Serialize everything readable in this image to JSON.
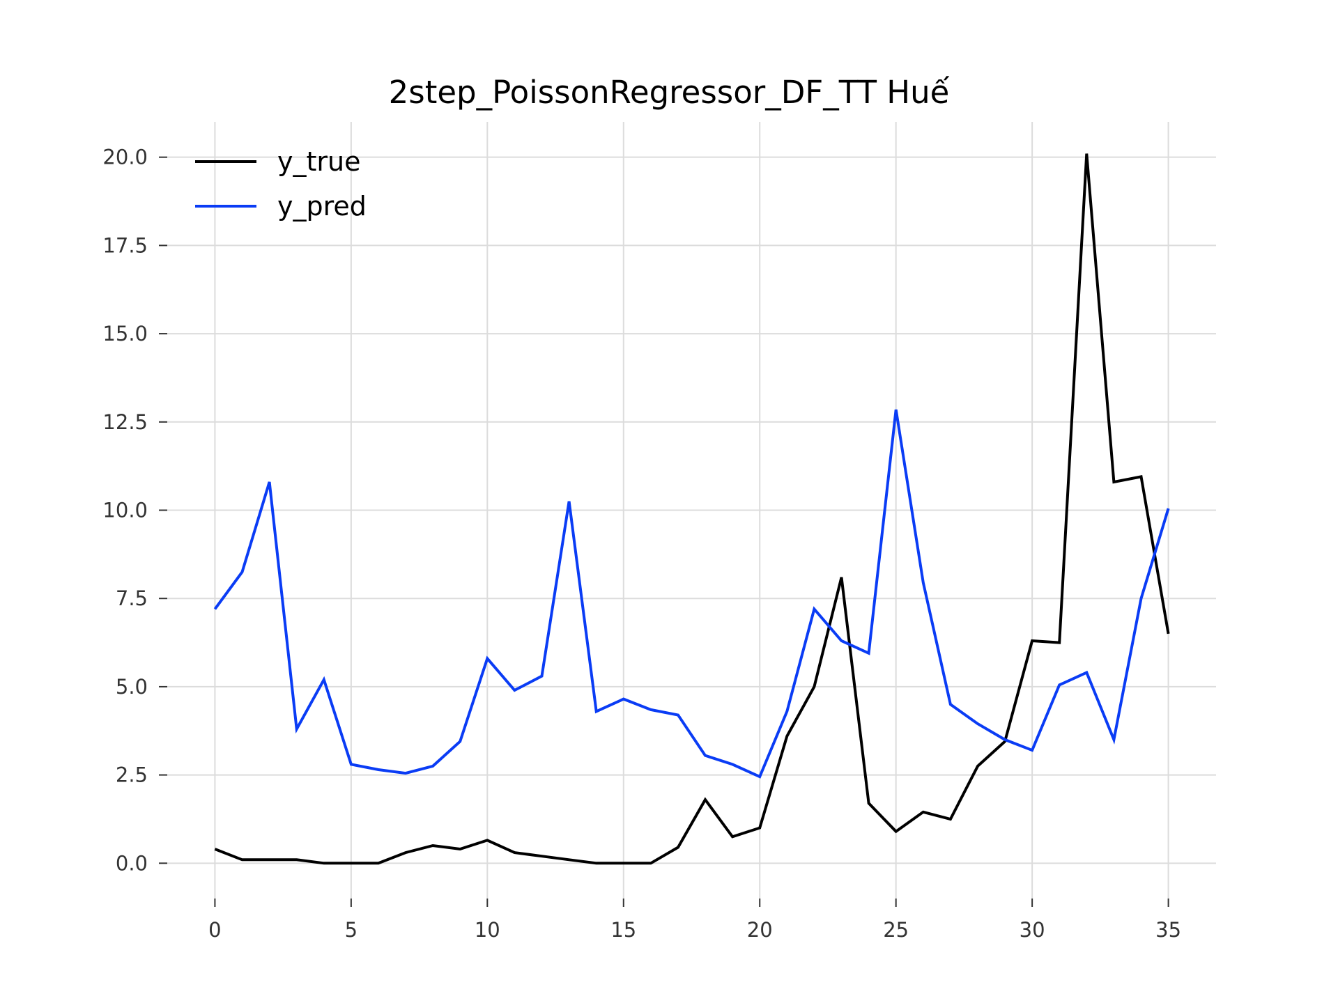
{
  "chart_data": {
    "type": "line",
    "title": "2step_PoissonRegressor_DF_TT Huế",
    "xlabel": "",
    "ylabel": "",
    "xlim": [
      -1.75,
      36.75
    ],
    "ylim": [
      -1.0,
      21.0
    ],
    "x_ticks": [
      0,
      5,
      10,
      15,
      20,
      25,
      30,
      35
    ],
    "y_ticks": [
      0.0,
      2.5,
      5.0,
      7.5,
      10.0,
      12.5,
      15.0,
      17.5,
      20.0
    ],
    "x_tick_labels": [
      "0",
      "5",
      "10",
      "15",
      "20",
      "25",
      "30",
      "35"
    ],
    "y_tick_labels": [
      "0.0",
      "2.5",
      "5.0",
      "7.5",
      "10.0",
      "12.5",
      "15.0",
      "17.5",
      "20.0"
    ],
    "grid": true,
    "legend_position": "top-left",
    "x": [
      0,
      1,
      2,
      3,
      4,
      5,
      6,
      7,
      8,
      9,
      10,
      11,
      12,
      13,
      14,
      15,
      16,
      17,
      18,
      19,
      20,
      21,
      22,
      23,
      24,
      25,
      26,
      27,
      28,
      29,
      30,
      31,
      32,
      33,
      34,
      35
    ],
    "series": [
      {
        "name": "y_true",
        "color": "#000000",
        "values": [
          0.4,
          0.1,
          0.1,
          0.1,
          0.0,
          0.0,
          0.0,
          0.3,
          0.5,
          0.4,
          0.65,
          0.3,
          0.2,
          0.1,
          0.0,
          0.0,
          0.0,
          0.45,
          1.8,
          0.75,
          1.0,
          3.6,
          5.0,
          8.1,
          1.7,
          0.9,
          1.45,
          1.25,
          2.75,
          3.45,
          6.3,
          6.25,
          20.1,
          10.8,
          10.95,
          6.5
        ]
      },
      {
        "name": "y_pred",
        "color": "#0a3cf5",
        "values": [
          7.2,
          8.25,
          10.8,
          3.8,
          5.2,
          2.8,
          2.65,
          2.55,
          2.75,
          3.45,
          5.8,
          4.9,
          5.3,
          10.25,
          4.3,
          4.65,
          4.35,
          4.2,
          3.05,
          2.8,
          2.45,
          4.3,
          7.2,
          6.3,
          5.95,
          12.85,
          7.95,
          4.5,
          3.95,
          3.5,
          3.2,
          5.05,
          5.4,
          3.5,
          7.5,
          10.05
        ]
      }
    ]
  }
}
